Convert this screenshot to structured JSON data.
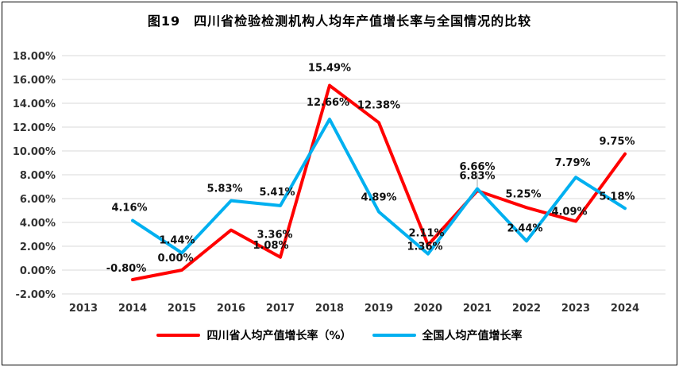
{
  "figure": {
    "title": "图19　四川省检验检测机构人均年产值增长率与全国情况的比较"
  },
  "chart_data": {
    "type": "line",
    "title": "图19　四川省检验检测机构人均年产值增长率与全国情况的比较",
    "xlabel": "",
    "ylabel": "",
    "categories": [
      "2013",
      "2014",
      "2015",
      "2016",
      "2017",
      "2018",
      "2019",
      "2020",
      "2021",
      "2022",
      "2023",
      "2024"
    ],
    "series": [
      {
        "name": "四川省人均产值增长率（%）",
        "color": "#FF0000",
        "values": [
          null,
          -0.8,
          0.0,
          3.36,
          1.08,
          15.49,
          12.38,
          2.11,
          6.66,
          5.25,
          4.09,
          9.75
        ],
        "labels": [
          "",
          "-0.80%",
          "0.00%",
          "3.36%",
          "1.08%",
          "15.49%",
          "12.38%",
          "2.11%",
          "6.66%",
          "5.25%",
          "4.09%",
          "9.75%"
        ],
        "label_offsets": [
          [
            0,
            0
          ],
          [
            -8,
            -10
          ],
          [
            -8,
            -11
          ],
          [
            55,
            10
          ],
          [
            -12,
            -11
          ],
          [
            0,
            -18
          ],
          [
            0,
            -18
          ],
          [
            -2,
            -11
          ],
          [
            0,
            -26
          ],
          [
            -4,
            -13
          ],
          [
            -8,
            -8
          ],
          [
            -10,
            -12
          ]
        ]
      },
      {
        "name": "全国人均产值增长率",
        "color": "#00B0F0",
        "values": [
          null,
          4.16,
          1.44,
          5.83,
          5.41,
          12.66,
          4.89,
          1.36,
          6.83,
          2.44,
          7.79,
          5.18
        ],
        "labels": [
          "",
          "4.16%",
          "1.44%",
          "5.83%",
          "5.41%",
          "12.66%",
          "4.89%",
          "1.36%",
          "6.83%",
          "2.44%",
          "7.79%",
          "5.18%"
        ],
        "label_offsets": [
          [
            0,
            0
          ],
          [
            -4,
            -12
          ],
          [
            -6,
            -12
          ],
          [
            -8,
            -11
          ],
          [
            -4,
            -13
          ],
          [
            -2,
            -17
          ],
          [
            0,
            -14
          ],
          [
            -4,
            -5
          ],
          [
            0,
            -12
          ],
          [
            -2,
            -12
          ],
          [
            -4,
            -14
          ],
          [
            -10,
            -11
          ]
        ]
      }
    ],
    "ylim": [
      -2,
      18
    ],
    "ytick_step": 2,
    "ytick_labels": [
      "-2.00%",
      "0.00%",
      "2.00%",
      "4.00%",
      "6.00%",
      "8.00%",
      "10.00%",
      "12.00%",
      "14.00%",
      "16.00%",
      "18.00%"
    ],
    "grid": true,
    "legend_position": "bottom",
    "grid_color": "#d9d9d9"
  }
}
